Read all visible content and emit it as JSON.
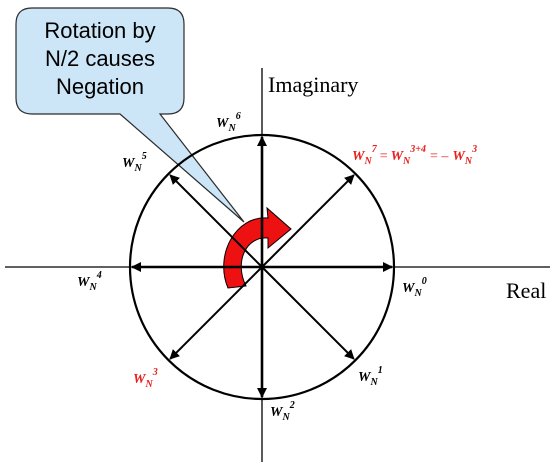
{
  "callout": {
    "lines": [
      "Rotation by",
      "N/2 causes",
      "Negation"
    ]
  },
  "axes": {
    "y_label": "Imaginary",
    "x_label": "Real"
  },
  "twiddles": [
    {
      "k": "0",
      "base": "W",
      "sub": "N",
      "sup": "0",
      "color": "#000000"
    },
    {
      "k": "1",
      "base": "W",
      "sub": "N",
      "sup": "1",
      "color": "#000000"
    },
    {
      "k": "2",
      "base": "W",
      "sub": "N",
      "sup": "2",
      "color": "#000000"
    },
    {
      "k": "3",
      "base": "W",
      "sub": "N",
      "sup": "3",
      "color": "#e8201e"
    },
    {
      "k": "4",
      "base": "W",
      "sub": "N",
      "sup": "4",
      "color": "#000000"
    },
    {
      "k": "5",
      "base": "W",
      "sub": "N",
      "sup": "5",
      "color": "#000000"
    },
    {
      "k": "6",
      "base": "W",
      "sub": "N",
      "sup": "6",
      "color": "#000000"
    }
  ],
  "identity": {
    "color": "#e8201e",
    "lhs_sup": "7",
    "eq": "=",
    "mid_sup": "3+4",
    "neg": "= –",
    "rhs_sup": "3"
  },
  "colors": {
    "callout_fill": "#cce5f7",
    "callout_stroke": "#2b2b2b",
    "rotation_arrow": "#ee1111",
    "highlight": "#e8201e"
  }
}
